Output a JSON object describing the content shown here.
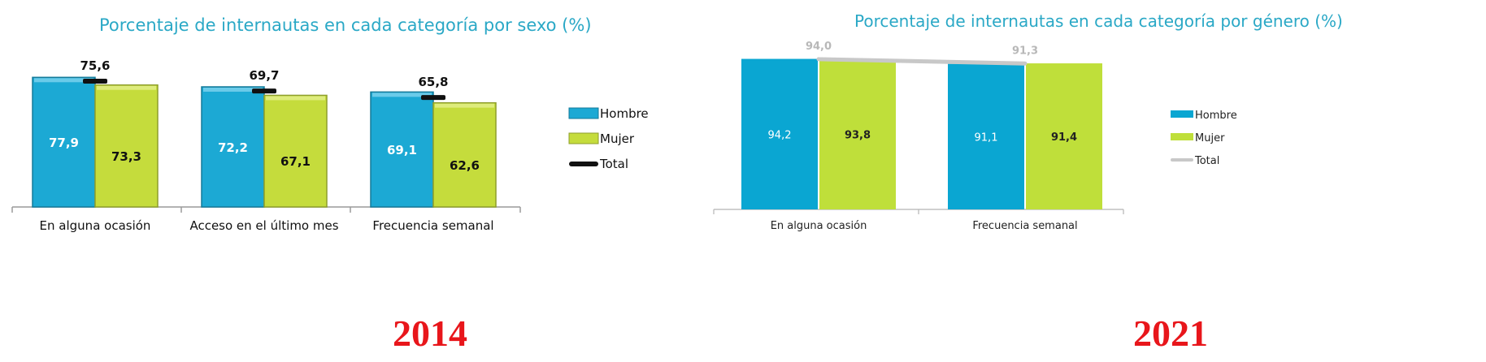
{
  "chart_data": [
    {
      "type": "bar",
      "title": "Porcentaje de internautas en cada categoría por sexo (%)",
      "year_label": "2014",
      "categories": [
        "En alguna ocasión",
        "Acceso en el último mes",
        "Frecuencia semanal"
      ],
      "series": [
        {
          "name": "Hombre",
          "kind": "bar",
          "color": "#1ca9d4",
          "values": [
            77.9,
            72.2,
            69.1
          ]
        },
        {
          "name": "Mujer",
          "kind": "bar",
          "color": "#c5dc3c",
          "values": [
            73.3,
            67.1,
            62.6
          ]
        },
        {
          "name": "Total",
          "kind": "marker",
          "color": "#111111",
          "values": [
            75.6,
            69.7,
            65.8
          ]
        }
      ],
      "ylim": [
        0,
        100
      ],
      "grid": false,
      "legend": "right",
      "title_color": "#2aa8c6"
    },
    {
      "type": "bar",
      "title": "Porcentaje de internautas en cada categoría por género (%)",
      "year_label": "2021",
      "categories": [
        "En alguna ocasión",
        "Frecuencia semanal"
      ],
      "series": [
        {
          "name": "Hombre",
          "kind": "bar",
          "color": "#0aa6d2",
          "values": [
            94.2,
            91.1
          ]
        },
        {
          "name": "Mujer",
          "kind": "bar",
          "color": "#bfdf3a",
          "values": [
            93.8,
            91.4
          ]
        },
        {
          "name": "Total",
          "kind": "line",
          "color": "#c8c8c8",
          "values": [
            94.0,
            91.3
          ]
        }
      ],
      "ylim": [
        0,
        96
      ],
      "grid": false,
      "legend": "right",
      "title_color": "#2aa8c6"
    }
  ]
}
